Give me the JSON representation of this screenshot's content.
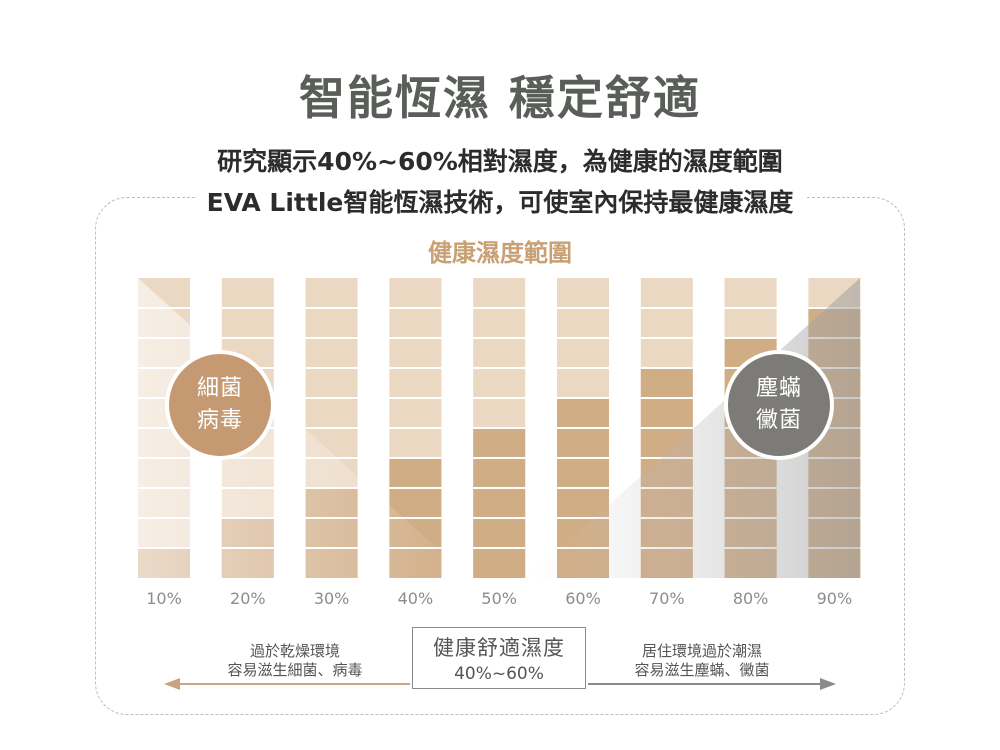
{
  "title": "智能恆濕 穩定舒適",
  "subtitle_line1": "研究顯示40%~60%相對濕度，為健康的濕度範圍",
  "subtitle_line2": "EVA Little智能恆濕技術，可使室內保持最健康濕度",
  "colors": {
    "track": "#ebd8c3",
    "fill": "#d1ad86",
    "accent": "#c59a72",
    "gray": "#7c7b77",
    "heading": "#c9a074"
  },
  "chart_data": {
    "type": "bar",
    "title": "健康濕度範圍",
    "categories": [
      "10%",
      "20%",
      "30%",
      "40%",
      "50%",
      "60%",
      "70%",
      "80%",
      "90%"
    ],
    "values": [
      1,
      2,
      3,
      4,
      5,
      6,
      7,
      8,
      9
    ],
    "max_segments": 10,
    "grid": true
  },
  "bubbles": {
    "left": {
      "line1": "細菌",
      "line2": "病毒"
    },
    "right": {
      "line1": "塵蟎",
      "line2": "黴菌"
    }
  },
  "notes": {
    "left_line1": "過於乾燥環境",
    "left_line2": "容易滋生細菌、病毒",
    "right_line1": "居住環境過於潮濕",
    "right_line2": "容易滋生塵蟎、黴菌"
  },
  "center_box": {
    "line1": "健康舒適濕度",
    "line2": "40%~60%"
  }
}
